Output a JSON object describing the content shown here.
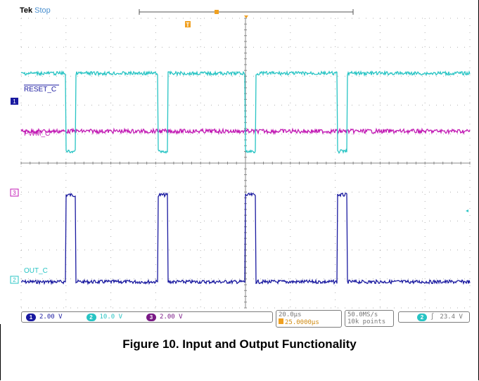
{
  "scope": {
    "brand": "Tek",
    "state": "Stop",
    "trigger_marker_label": "T",
    "channel_markers": [
      "1",
      "3",
      "2"
    ]
  },
  "labels": {
    "reset": "RESET_C",
    "pwm": "PWM_C",
    "out": "OUT_C"
  },
  "readouts": {
    "ch1_num": "1",
    "ch1_scale": "2.00 V",
    "ch2_num": "2",
    "ch2_scale": "10.0 V",
    "ch3_num": "3",
    "ch3_scale": "2.00 V",
    "timebase": "20.0µs",
    "trigger_pos": "25.0000µs",
    "sample_rate": "50.0MS/s",
    "record_length": "10k points",
    "trig_ch_num": "2",
    "trig_slope": "∫",
    "trig_level": "23.4 V"
  },
  "caption": "Figure 10. Input and Output Functionality",
  "colors": {
    "ch1": "#1a1aa0",
    "ch2": "#28c4c4",
    "ch3": "#c21ab4",
    "grid": "#b0b0b0",
    "trigger": "#f0a020"
  },
  "chart_data": {
    "type": "line",
    "x_unit": "µs",
    "x_divisions": 10,
    "time_per_div": "20.0µs",
    "pulse_starts_div": [
      1.0,
      3.05,
      5.0,
      7.05
    ],
    "pulse_width_div": 0.22,
    "series": [
      {
        "name": "RESET_C",
        "channel": 1,
        "low_div": -4.1,
        "high_div": -1.1
      },
      {
        "name": "PWM_C",
        "channel": 3,
        "low_div": 1.1,
        "high_div": 1.1
      },
      {
        "name": "OUT_C",
        "channel": 2,
        "low_div": 3.1,
        "high_div": 0.4
      }
    ]
  }
}
